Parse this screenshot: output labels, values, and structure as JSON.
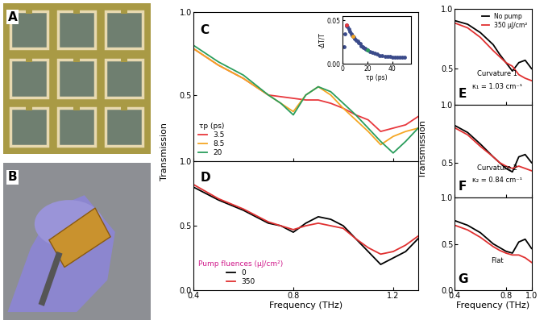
{
  "chart_data": [
    {
      "type": "image",
      "title": "A"
    },
    {
      "type": "image",
      "title": "B"
    },
    {
      "type": "line",
      "title": "C",
      "x": [
        0.4,
        0.5,
        0.6,
        0.7,
        0.75,
        0.8,
        0.85,
        0.9,
        0.95,
        1.0,
        1.05,
        1.1,
        1.15,
        1.2,
        1.25,
        1.3
      ],
      "series": [
        {
          "name": "3.5",
          "color": "#e8383d",
          "values": [
            0.78,
            0.68,
            0.6,
            0.5,
            0.49,
            0.48,
            0.47,
            0.47,
            0.45,
            0.42,
            0.38,
            0.35,
            0.28,
            0.3,
            0.32,
            0.37
          ]
        },
        {
          "name": "8.5",
          "color": "#f5a623",
          "values": [
            0.78,
            0.68,
            0.6,
            0.5,
            0.45,
            0.4,
            0.5,
            0.55,
            0.5,
            0.42,
            0.35,
            0.28,
            0.2,
            0.25,
            0.28,
            0.3
          ]
        },
        {
          "name": "20",
          "color": "#2a9d5c",
          "values": [
            0.8,
            0.7,
            0.62,
            0.5,
            0.45,
            0.38,
            0.5,
            0.55,
            0.52,
            0.45,
            0.38,
            0.3,
            0.22,
            0.15,
            0.22,
            0.3
          ]
        }
      ],
      "xlim": [
        0.4,
        1.3
      ],
      "ylim": [
        0.1,
        1.0
      ],
      "xticks": [
        0.4,
        0.8,
        1.2
      ],
      "yticks": [
        0.5,
        1.0
      ],
      "tick_labels": "y",
      "legend": "lower left",
      "legend_title": "τp (ps)"
    },
    {
      "type": "scatter",
      "xlabel": "τp (ps)",
      "ylabel": "-ΔT/T",
      "series": [
        {
          "color": "#3a4a8a",
          "marker": "o",
          "x": [
            1,
            2,
            3,
            3.5,
            4,
            5,
            6,
            7,
            8,
            8.5,
            9,
            10,
            11,
            12,
            13,
            14,
            15,
            16,
            17,
            18,
            19,
            20,
            22,
            24,
            26,
            28,
            30,
            32,
            34,
            36,
            38,
            40,
            42,
            44,
            46,
            48,
            50
          ],
          "values": [
            0.02,
            0.035,
            0.044,
            0.045,
            0.043,
            0.04,
            0.037,
            0.035,
            0.033,
            0.032,
            0.031,
            0.029,
            0.027,
            0.026,
            0.024,
            0.023,
            0.021,
            0.02,
            0.019,
            0.018,
            0.017,
            0.016,
            0.014,
            0.013,
            0.012,
            0.011,
            0.01,
            0.01,
            0.009,
            0.009,
            0.009,
            0.008,
            0.008,
            0.008,
            0.008,
            0.008,
            0.008
          ]
        },
        {
          "color": "#e8383d",
          "marker": "o",
          "x": [
            3.5
          ],
          "values": [
            0.045
          ]
        },
        {
          "color": "#f5a623",
          "marker": "o",
          "x": [
            8.5
          ],
          "values": [
            0.032
          ]
        },
        {
          "color": "#2a9d5c",
          "marker": "o",
          "x": [
            20
          ],
          "values": [
            0.016
          ]
        }
      ],
      "xlim": [
        0,
        55
      ],
      "ylim": [
        0,
        0.055
      ],
      "xticks": [
        0,
        20,
        40
      ],
      "yticks": [
        {
          "value": 0,
          "label": "0.00"
        },
        0.05
      ]
    },
    {
      "type": "line",
      "title": "D",
      "x": [
        0.4,
        0.5,
        0.6,
        0.7,
        0.75,
        0.8,
        0.85,
        0.9,
        0.95,
        1.0,
        1.05,
        1.1,
        1.15,
        1.2,
        1.25,
        1.3
      ],
      "series": [
        {
          "name": "0",
          "color": "#000000",
          "values": [
            0.8,
            0.7,
            0.62,
            0.52,
            0.5,
            0.45,
            0.52,
            0.57,
            0.55,
            0.5,
            0.4,
            0.3,
            0.2,
            0.25,
            0.3,
            0.4
          ]
        },
        {
          "name": "350",
          "color": "#e03030",
          "values": [
            0.82,
            0.71,
            0.63,
            0.53,
            0.5,
            0.47,
            0.5,
            0.52,
            0.5,
            0.48,
            0.4,
            0.33,
            0.28,
            0.3,
            0.35,
            0.42
          ]
        }
      ],
      "xlim": [
        0.4,
        1.3
      ],
      "ylim": [
        0.0,
        1.0
      ],
      "xticks": [
        0.4,
        0.8,
        1.2
      ],
      "yticks": [
        0.0,
        0.5,
        1.0
      ],
      "xlabel": "Frequency (THz)",
      "ylabel": "Transmission",
      "legend": "lower left",
      "legend_title": "Pump fluences (μJ/cm²)"
    },
    {
      "type": "line",
      "title": "E",
      "x": [
        0.4,
        0.5,
        0.6,
        0.7,
        0.75,
        0.8,
        0.85,
        0.9,
        0.95,
        1.0
      ],
      "series": [
        {
          "name": "No pump",
          "color": "#000000",
          "values": [
            0.9,
            0.87,
            0.8,
            0.7,
            0.62,
            0.55,
            0.48,
            0.55,
            0.57,
            0.5
          ]
        },
        {
          "name": "350 μJ/cm²",
          "color": "#e03030",
          "values": [
            0.88,
            0.84,
            0.76,
            0.65,
            0.6,
            0.55,
            0.52,
            0.45,
            0.42,
            0.4
          ]
        }
      ],
      "xlim": [
        0.4,
        1.0
      ],
      "ylim": [
        0.2,
        1.0
      ],
      "xticks": [
        0.4,
        0.8,
        1.0
      ],
      "yticks": [
        0.5,
        1.0
      ],
      "tick_labels": "y",
      "legend": "upper right",
      "annotations": [
        "Curvature 1",
        "κ₁ = 1.03 cm⁻¹"
      ]
    },
    {
      "type": "line",
      "title": "F",
      "x": [
        0.4,
        0.5,
        0.6,
        0.7,
        0.75,
        0.8,
        0.85,
        0.9,
        0.95,
        1.0
      ],
      "series": [
        {
          "color": "#000000",
          "values": [
            0.82,
            0.76,
            0.66,
            0.55,
            0.5,
            0.45,
            0.42,
            0.55,
            0.57,
            0.5
          ]
        },
        {
          "color": "#e03030",
          "values": [
            0.8,
            0.74,
            0.64,
            0.55,
            0.5,
            0.47,
            0.45,
            0.47,
            0.45,
            0.43
          ]
        }
      ],
      "xlim": [
        0.4,
        1.0
      ],
      "ylim": [
        0.2,
        1.0
      ],
      "xticks": [
        0.4,
        0.8,
        1.0
      ],
      "yticks": [
        0.5,
        1.0
      ],
      "tick_labels": "y",
      "annotations": [
        "Curvature 2",
        "κ₂ = 0.84 cm⁻¹"
      ]
    },
    {
      "type": "line",
      "title": "G",
      "x": [
        0.4,
        0.5,
        0.6,
        0.7,
        0.75,
        0.8,
        0.85,
        0.9,
        0.95,
        1.0
      ],
      "series": [
        {
          "color": "#000000",
          "values": [
            0.75,
            0.7,
            0.62,
            0.5,
            0.46,
            0.42,
            0.4,
            0.52,
            0.55,
            0.45
          ]
        },
        {
          "color": "#e03030",
          "values": [
            0.7,
            0.65,
            0.57,
            0.47,
            0.43,
            0.4,
            0.38,
            0.38,
            0.35,
            0.3
          ]
        }
      ],
      "xlim": [
        0.4,
        1.0
      ],
      "ylim": [
        0.0,
        1.0
      ],
      "xticks": [
        0.4,
        0.8,
        1.0
      ],
      "yticks": [
        0.0,
        0.5,
        1.0
      ],
      "xlabel": "Frequency (THz)",
      "ylabel": "Transmission",
      "annotations": [
        "Flat"
      ]
    }
  ]
}
